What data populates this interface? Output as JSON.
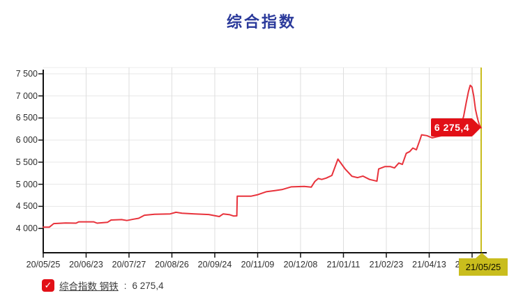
{
  "title": "综合指数",
  "colors": {
    "title": "#2b3a9b",
    "line": "#e8323b",
    "accent_red": "#e21017",
    "highlight_yellow": "#c9bd1d",
    "axis": "#111111",
    "grid": "#e3e3e3"
  },
  "chart_data": {
    "type": "line",
    "title": "综合指数",
    "xlabel": "",
    "ylabel": "",
    "ylim": [
      3450,
      7500
    ],
    "grid": true,
    "legend_position": "bottom-left",
    "y_ticks": {
      "values": [
        4000,
        4500,
        5000,
        5500,
        6000,
        6500,
        7000,
        7500
      ],
      "labels": [
        "4 000",
        "4 500",
        "5 000",
        "5 500",
        "6 000",
        "6 500",
        "7 000",
        "7 500"
      ]
    },
    "x_ticks": [
      "20/05/25",
      "20/06/23",
      "20/07/27",
      "20/08/26",
      "20/09/24",
      "20/11/09",
      "20/12/08",
      "21/01/11",
      "21/02/23",
      "21/04/13",
      "21/05/25"
    ],
    "series": [
      {
        "name": "综合指数 钢铁",
        "color": "#e8323b",
        "last_value": 6275.4,
        "points": [
          [
            0,
            4030
          ],
          [
            0.014,
            4030
          ],
          [
            0.024,
            4110
          ],
          [
            0.051,
            4125
          ],
          [
            0.075,
            4120
          ],
          [
            0.081,
            4150
          ],
          [
            0.115,
            4150
          ],
          [
            0.123,
            4120
          ],
          [
            0.147,
            4140
          ],
          [
            0.155,
            4190
          ],
          [
            0.179,
            4200
          ],
          [
            0.191,
            4180
          ],
          [
            0.206,
            4210
          ],
          [
            0.218,
            4230
          ],
          [
            0.231,
            4300
          ],
          [
            0.254,
            4320
          ],
          [
            0.29,
            4330
          ],
          [
            0.303,
            4365
          ],
          [
            0.317,
            4345
          ],
          [
            0.346,
            4330
          ],
          [
            0.378,
            4315
          ],
          [
            0.402,
            4270
          ],
          [
            0.411,
            4330
          ],
          [
            0.426,
            4310
          ],
          [
            0.435,
            4280
          ],
          [
            0.442,
            4285
          ],
          [
            0.443,
            4730
          ],
          [
            0.474,
            4730
          ],
          [
            0.49,
            4765
          ],
          [
            0.509,
            4830
          ],
          [
            0.529,
            4855
          ],
          [
            0.545,
            4880
          ],
          [
            0.566,
            4940
          ],
          [
            0.596,
            4950
          ],
          [
            0.612,
            4935
          ],
          [
            0.62,
            5060
          ],
          [
            0.628,
            5130
          ],
          [
            0.636,
            5110
          ],
          [
            0.646,
            5140
          ],
          [
            0.659,
            5200
          ],
          [
            0.673,
            5570
          ],
          [
            0.689,
            5350
          ],
          [
            0.705,
            5180
          ],
          [
            0.718,
            5150
          ],
          [
            0.73,
            5185
          ],
          [
            0.745,
            5110
          ],
          [
            0.762,
            5070
          ],
          [
            0.766,
            5345
          ],
          [
            0.78,
            5400
          ],
          [
            0.793,
            5400
          ],
          [
            0.802,
            5370
          ],
          [
            0.812,
            5480
          ],
          [
            0.82,
            5450
          ],
          [
            0.829,
            5700
          ],
          [
            0.837,
            5740
          ],
          [
            0.844,
            5820
          ],
          [
            0.852,
            5780
          ],
          [
            0.86,
            6000
          ],
          [
            0.864,
            6120
          ],
          [
            0.876,
            6100
          ],
          [
            0.888,
            6050
          ],
          [
            0.901,
            6080
          ],
          [
            0.911,
            6100
          ],
          [
            0.92,
            6120
          ],
          [
            0.933,
            6150
          ],
          [
            0.944,
            6200
          ],
          [
            0.952,
            6280
          ],
          [
            0.96,
            6540
          ],
          [
            0.966,
            6850
          ],
          [
            0.971,
            7100
          ],
          [
            0.975,
            7240
          ],
          [
            0.979,
            7200
          ],
          [
            0.983,
            7000
          ],
          [
            0.987,
            6700
          ],
          [
            0.99,
            6560
          ],
          [
            0.993,
            6440
          ],
          [
            0.996,
            6340
          ],
          [
            1,
            6275.4
          ]
        ]
      }
    ],
    "crosshair": {
      "t": 1,
      "date_label": "21/05/25",
      "value_label": "6 275,4"
    }
  },
  "tooltip": {
    "value": "6 275,4"
  },
  "axis_highlight": {
    "label": "21/05/25"
  },
  "legend": {
    "checkmark": "✓",
    "checkbox_checked": true,
    "label": "综合指数 钢铁",
    "separator": ":",
    "value": "6 275,4"
  }
}
